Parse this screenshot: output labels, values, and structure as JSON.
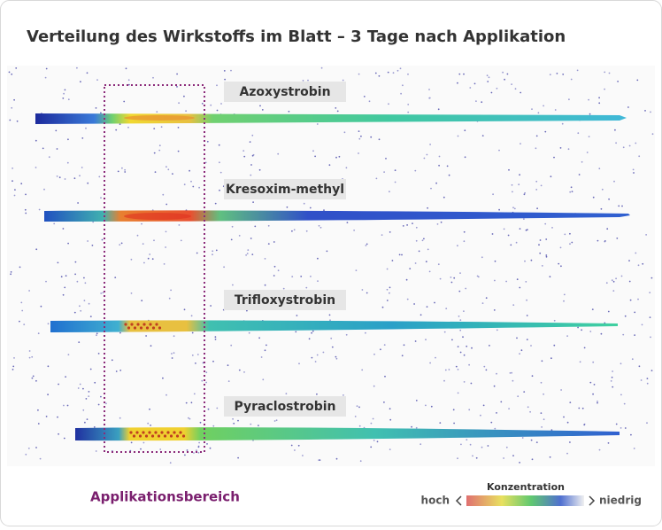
{
  "header": {
    "title": "Verteilung des Wirkstoffs im Blatt – 3 Tage nach Applikation"
  },
  "leaves": [
    {
      "label": "Azoxystrobin"
    },
    {
      "label": "Kresoxim-methyl"
    },
    {
      "label": "Trifloxystrobin"
    },
    {
      "label": "Pyraclostrobin"
    }
  ],
  "application_area": {
    "label": "Applikationsbereich"
  },
  "legend": {
    "title": "Konzentration",
    "high": "hoch",
    "low": "niedrig"
  }
}
